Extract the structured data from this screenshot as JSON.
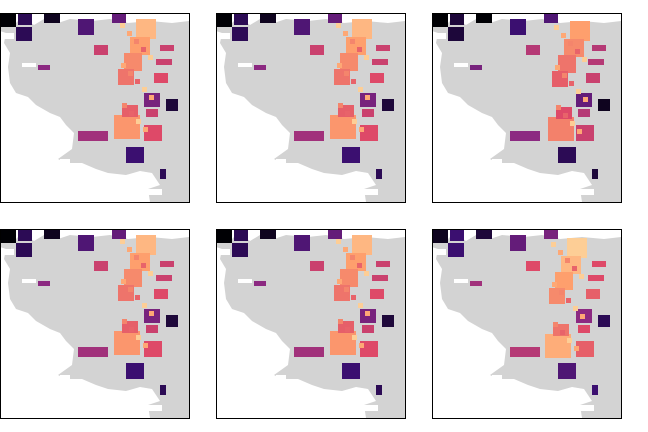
{
  "figure": {
    "layout": {
      "rows": 2,
      "cols": 3
    },
    "land_color": "#d3d3d3",
    "background_color": "#ffffff",
    "frame_color": "#000000",
    "colormap": "magma",
    "colormap_stops": [
      "#000004",
      "#3b0f70",
      "#8c2981",
      "#de4968",
      "#fe9f6d",
      "#fcfdbf"
    ]
  },
  "panels": [
    {
      "id": "p1",
      "variant": 0
    },
    {
      "id": "p2",
      "variant": 0
    },
    {
      "id": "p3",
      "variant": 1
    },
    {
      "id": "p4",
      "variant": 0
    },
    {
      "id": "p5",
      "variant": 0
    },
    {
      "id": "p6",
      "variant": 2
    }
  ],
  "cells": [
    {
      "id": "nw-corner",
      "level": 0.0
    },
    {
      "id": "north-1",
      "level": 0.15
    },
    {
      "id": "north-2",
      "level": 0.05
    },
    {
      "id": "north-3",
      "level": 0.25
    },
    {
      "id": "north-4",
      "level": 0.3
    },
    {
      "id": "west-1",
      "level": 0.15
    },
    {
      "id": "corridor-1",
      "level": 0.85
    },
    {
      "id": "corridor-2",
      "level": 0.8
    },
    {
      "id": "corridor-3",
      "level": 0.75
    },
    {
      "id": "corridor-4",
      "level": 0.7
    },
    {
      "id": "east-1",
      "level": 0.55
    },
    {
      "id": "east-2",
      "level": 0.55
    },
    {
      "id": "east-3",
      "level": 0.6
    },
    {
      "id": "mid-1",
      "level": 0.55
    },
    {
      "id": "mid-2",
      "level": 0.4
    },
    {
      "id": "south-hub",
      "level": 0.78
    },
    {
      "id": "south-hub-2",
      "level": 0.65
    },
    {
      "id": "south-1",
      "level": 0.45
    },
    {
      "id": "south-2",
      "level": 0.6
    },
    {
      "id": "south-3",
      "level": 0.35
    },
    {
      "id": "east-dark",
      "level": 0.1
    },
    {
      "id": "southeast-1",
      "level": 0.55
    },
    {
      "id": "south-dark",
      "level": 0.2
    },
    {
      "id": "far-se",
      "level": 0.15
    }
  ]
}
